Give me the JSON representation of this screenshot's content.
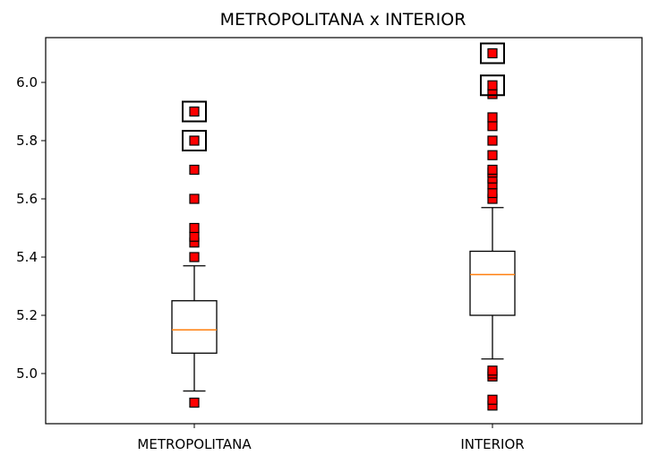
{
  "chart_data": {
    "type": "box",
    "title": "METROPOLITANA x INTERIOR",
    "xlabel": "",
    "ylabel": "",
    "ylim": [
      4.87,
      6.16
    ],
    "yticks": [
      "5.0",
      "5.2",
      "5.4",
      "5.6",
      "5.8",
      "6.0"
    ],
    "grid": false,
    "categories": [
      "METROPOLITANA",
      "INTERIOR"
    ],
    "boxes": [
      {
        "category": "METROPOLITANA",
        "whisker_low": 4.94,
        "q1": 5.07,
        "median": 5.15,
        "q3": 5.25,
        "whisker_high": 5.37,
        "outliers": [
          4.9,
          5.4,
          5.45,
          5.47,
          5.5,
          5.6,
          5.7,
          5.8,
          5.9
        ],
        "highlighted": [
          5.8,
          5.9
        ]
      },
      {
        "category": "INTERIOR",
        "whisker_low": 5.05,
        "q1": 5.2,
        "median": 5.34,
        "q3": 5.42,
        "whisker_high": 5.57,
        "outliers": [
          4.89,
          4.91,
          4.99,
          5.0,
          5.01,
          5.6,
          5.62,
          5.65,
          5.67,
          5.69,
          5.7,
          5.75,
          5.8,
          5.85,
          5.88,
          5.96,
          5.99,
          6.1
        ],
        "highlighted": [
          5.99,
          6.1
        ]
      }
    ],
    "colors": {
      "box": "#000000",
      "median": "#ff7f0e",
      "outlier_fill": "#ff0000",
      "outlier_edge": "#000000"
    }
  }
}
